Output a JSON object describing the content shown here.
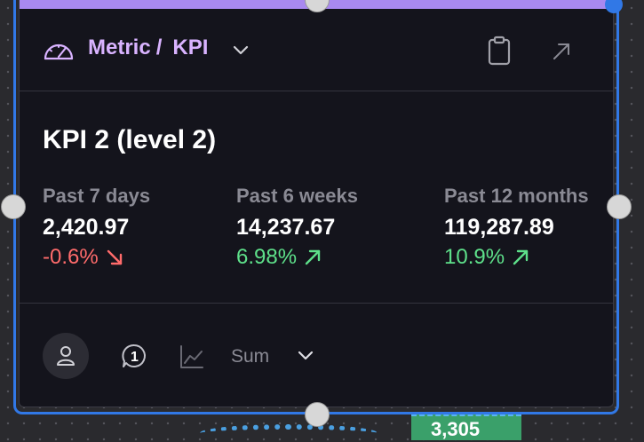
{
  "header": {
    "breadcrumb_parent": "Metric",
    "breadcrumb_separator": "/",
    "breadcrumb_current": "KPI"
  },
  "card": {
    "title": "KPI 2 (level 2)"
  },
  "stats": [
    {
      "label": "Past 7 days",
      "value": "2,420.97",
      "change": "-0.6%",
      "trend": "down"
    },
    {
      "label": "Past 6 weeks",
      "value": "14,237.67",
      "change": "6.98%",
      "trend": "up"
    },
    {
      "label": "Past 12 months",
      "value": "119,287.89",
      "change": "10.9%",
      "trend": "up"
    }
  ],
  "footer": {
    "badge_count": "1",
    "aggregation_label": "Sum"
  },
  "canvas": {
    "peek_value": "3,305"
  },
  "colors": {
    "accent": "#a989f0",
    "breadcrumb": "#d9b3ff",
    "negative": "#ff6b6b",
    "positive": "#5ee08a",
    "selection": "#3178e6"
  }
}
